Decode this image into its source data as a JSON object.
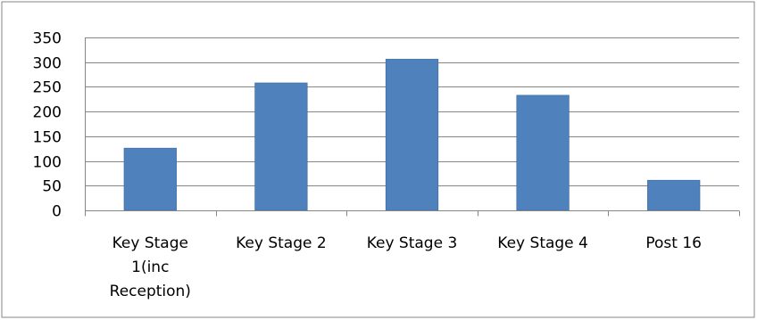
{
  "chart_data": {
    "type": "bar",
    "categories": [
      "Key Stage 1(inc Reception)",
      "Key Stage 2",
      "Key Stage 3",
      "Key Stage 4",
      "Post 16"
    ],
    "category_lines": [
      [
        "Key Stage",
        "1(inc",
        "Reception)"
      ],
      [
        "Key Stage 2"
      ],
      [
        "Key Stage 3"
      ],
      [
        "Key Stage 4"
      ],
      [
        "Post 16"
      ]
    ],
    "values": [
      126,
      258,
      306,
      233,
      61
    ],
    "ylim": [
      0,
      350
    ],
    "yticks": [
      "0",
      "50",
      "100",
      "150",
      "200",
      "250",
      "300",
      "350"
    ],
    "grid": true,
    "legend": "none",
    "colors": {
      "bar": "#4F81BD",
      "bar_edge": "#3A6A9E",
      "grid": "#868686",
      "frame": "#868686"
    }
  }
}
